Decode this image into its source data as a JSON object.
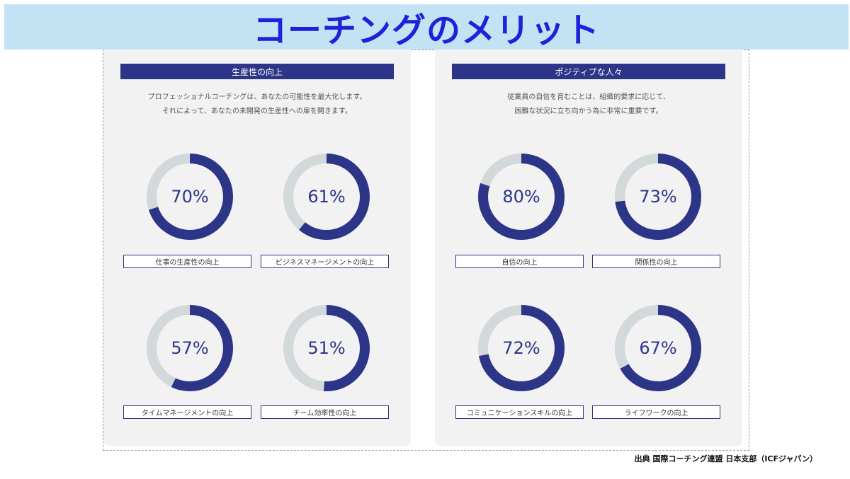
{
  "title": "コーチングのメリット",
  "source": "出典 国際コーチング連盟 日本支部（ICFジャパン）",
  "colors": {
    "accent": "#2c3587",
    "track": "#d3d8da",
    "title": "#1f1fdc",
    "title_bg": "#c3e3f5"
  },
  "cards": [
    {
      "header": "生産性の向上",
      "desc_line1": "プロフェッショナルコーチングは、あなたの可能性を最大化します。",
      "desc_line2": "それによって、あなたの未開発の生産性への扉を開きます。",
      "stats": [
        {
          "value": 70,
          "label_pct": "70%",
          "label": "仕事の生産性の向上"
        },
        {
          "value": 61,
          "label_pct": "61%",
          "label": "ビジネスマネージメントの向上"
        },
        {
          "value": 57,
          "label_pct": "57%",
          "label": "タイムマネージメントの向上"
        },
        {
          "value": 51,
          "label_pct": "51%",
          "label": "チーム効率性の向上"
        }
      ]
    },
    {
      "header": "ポジティブな人々",
      "desc_line1": "従業員の自信を育むことは、組織的要求に応じて、",
      "desc_line2": "困難な状況に立ち向かう為に非常に重要です。",
      "stats": [
        {
          "value": 80,
          "label_pct": "80%",
          "label": "自信の向上"
        },
        {
          "value": 73,
          "label_pct": "73%",
          "label": "関係性の向上"
        },
        {
          "value": 72,
          "label_pct": "72%",
          "label": "コミュニケーションスキルの向上"
        },
        {
          "value": 67,
          "label_pct": "67%",
          "label": "ライフワークの向上"
        }
      ]
    }
  ]
}
